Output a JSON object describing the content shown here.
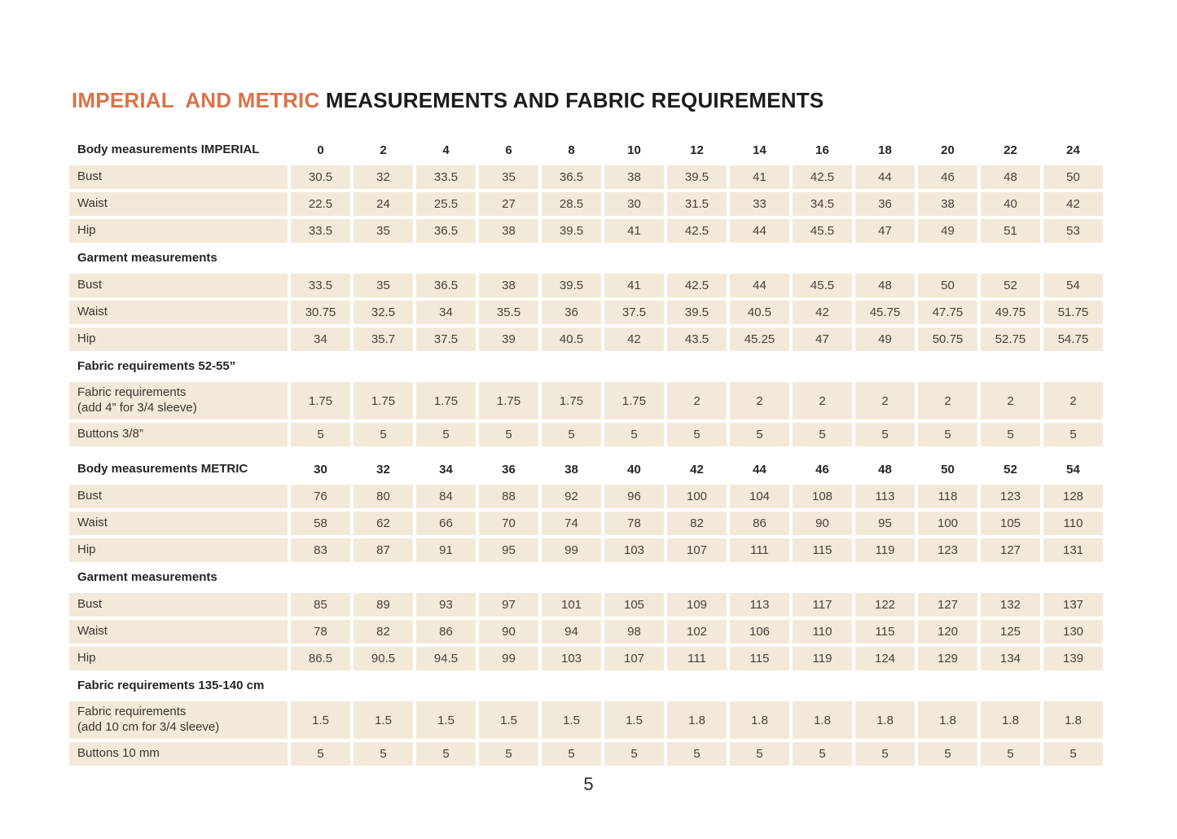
{
  "page": {
    "title_highlight": "IMPERIAL  AND METRIC ",
    "title_rest": "MEASUREMENTS AND FABRIC REQUIREMENTS",
    "page_number": "5",
    "colors": {
      "accent": "#d9734a",
      "row_background": "#f2e9d8"
    }
  },
  "table": {
    "rows": [
      {
        "kind": "sizes",
        "label": "Body measurements IMPERIAL",
        "values": [
          "0",
          "2",
          "4",
          "6",
          "8",
          "10",
          "12",
          "14",
          "16",
          "18",
          "20",
          "22",
          "24"
        ]
      },
      {
        "kind": "data",
        "label": "Bust",
        "values": [
          "30.5",
          "32",
          "33.5",
          "35",
          "36.5",
          "38",
          "39.5",
          "41",
          "42.5",
          "44",
          "46",
          "48",
          "50"
        ]
      },
      {
        "kind": "data",
        "label": "Waist",
        "values": [
          "22.5",
          "24",
          "25.5",
          "27",
          "28.5",
          "30",
          "31.5",
          "33",
          "34.5",
          "36",
          "38",
          "40",
          "42"
        ]
      },
      {
        "kind": "data",
        "label": "Hip",
        "values": [
          "33.5",
          "35",
          "36.5",
          "38",
          "39.5",
          "41",
          "42.5",
          "44",
          "45.5",
          "47",
          "49",
          "51",
          "53"
        ]
      },
      {
        "kind": "section",
        "label": "Garment measurements"
      },
      {
        "kind": "data",
        "label": "Bust",
        "values": [
          "33.5",
          "35",
          "36.5",
          "38",
          "39.5",
          "41",
          "42.5",
          "44",
          "45.5",
          "48",
          "50",
          "52",
          "54"
        ]
      },
      {
        "kind": "data",
        "label": "Waist",
        "values": [
          "30.75",
          "32.5",
          "34",
          "35.5",
          "36",
          "37.5",
          "39.5",
          "40.5",
          "42",
          "45.75",
          "47.75",
          "49.75",
          "51.75"
        ]
      },
      {
        "kind": "data",
        "label": "Hip",
        "values": [
          "34",
          "35.7",
          "37.5",
          "39",
          "40.5",
          "42",
          "43.5",
          "45.25",
          "47",
          "49",
          "50.75",
          "52.75",
          "54.75"
        ]
      },
      {
        "kind": "section",
        "label": "Fabric requirements 52-55”"
      },
      {
        "kind": "data2",
        "label": "Fabric requirements\n(add 4” for 3/4 sleeve)",
        "values": [
          "1.75",
          "1.75",
          "1.75",
          "1.75",
          "1.75",
          "1.75",
          "2",
          "2",
          "2",
          "2",
          "2",
          "2",
          "2"
        ]
      },
      {
        "kind": "data",
        "label": "Buttons 3/8”",
        "values": [
          "5",
          "5",
          "5",
          "5",
          "5",
          "5",
          "5",
          "5",
          "5",
          "5",
          "5",
          "5",
          "5"
        ]
      },
      {
        "kind": "spacer"
      },
      {
        "kind": "sizes",
        "label": "Body measurements METRIC",
        "values": [
          "30",
          "32",
          "34",
          "36",
          "38",
          "40",
          "42",
          "44",
          "46",
          "48",
          "50",
          "52",
          "54"
        ]
      },
      {
        "kind": "data",
        "label": "Bust",
        "values": [
          "76",
          "80",
          "84",
          "88",
          "92",
          "96",
          "100",
          "104",
          "108",
          "113",
          "118",
          "123",
          "128"
        ]
      },
      {
        "kind": "data",
        "label": "Waist",
        "values": [
          "58",
          "62",
          "66",
          "70",
          "74",
          "78",
          "82",
          "86",
          "90",
          "95",
          "100",
          "105",
          "110"
        ]
      },
      {
        "kind": "data",
        "label": "Hip",
        "values": [
          "83",
          "87",
          "91",
          "95",
          "99",
          "103",
          "107",
          "111",
          "115",
          "119",
          "123",
          "127",
          "131"
        ]
      },
      {
        "kind": "section",
        "label": "Garment measurements"
      },
      {
        "kind": "data",
        "label": "Bust",
        "values": [
          "85",
          "89",
          "93",
          "97",
          "101",
          "105",
          "109",
          "113",
          "117",
          "122",
          "127",
          "132",
          "137"
        ]
      },
      {
        "kind": "data",
        "label": "Waist",
        "values": [
          "78",
          "82",
          "86",
          "90",
          "94",
          "98",
          "102",
          "106",
          "110",
          "115",
          "120",
          "125",
          "130"
        ]
      },
      {
        "kind": "data",
        "label": "Hip",
        "values": [
          "86.5",
          "90.5",
          "94.5",
          "99",
          "103",
          "107",
          "111",
          "115",
          "119",
          "124",
          "129",
          "134",
          "139"
        ]
      },
      {
        "kind": "section",
        "label": "Fabric requirements 135-140 cm"
      },
      {
        "kind": "data2",
        "label": "Fabric requirements\n(add 10 cm for 3/4 sleeve)",
        "values": [
          "1.5",
          "1.5",
          "1.5",
          "1.5",
          "1.5",
          "1.5",
          "1.8",
          "1.8",
          "1.8",
          "1.8",
          "1.8",
          "1.8",
          "1.8"
        ]
      },
      {
        "kind": "data",
        "label": "Buttons 10 mm",
        "values": [
          "5",
          "5",
          "5",
          "5",
          "5",
          "5",
          "5",
          "5",
          "5",
          "5",
          "5",
          "5",
          "5"
        ]
      }
    ]
  }
}
